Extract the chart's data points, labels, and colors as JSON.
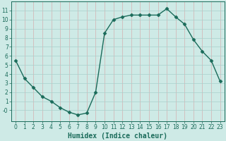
{
  "x": [
    0,
    1,
    2,
    3,
    4,
    5,
    6,
    7,
    8,
    9,
    10,
    11,
    12,
    13,
    14,
    15,
    16,
    17,
    18,
    19,
    20,
    21,
    22,
    23
  ],
  "y": [
    5.5,
    3.5,
    2.5,
    1.5,
    1.0,
    0.3,
    -0.2,
    -0.5,
    -0.3,
    2.0,
    8.5,
    10.0,
    10.3,
    10.5,
    10.5,
    10.5,
    10.5,
    11.2,
    10.3,
    9.5,
    7.8,
    6.5,
    5.5,
    3.2
  ],
  "line_color": "#1a6b5a",
  "marker": "D",
  "markersize": 2.5,
  "linewidth": 1.0,
  "bg_color": "#ceeae6",
  "hgrid_color": "#a8d0cc",
  "vgrid_color": "#d4b0b0",
  "xlabel": "Humidex (Indice chaleur)",
  "xlim": [
    -0.5,
    23.5
  ],
  "ylim": [
    -1.2,
    12.0
  ],
  "yticks": [
    0,
    1,
    2,
    3,
    4,
    5,
    6,
    7,
    8,
    9,
    10,
    11
  ],
  "xticks": [
    0,
    1,
    2,
    3,
    4,
    5,
    6,
    7,
    8,
    9,
    10,
    11,
    12,
    13,
    14,
    15,
    16,
    17,
    18,
    19,
    20,
    21,
    22,
    23
  ],
  "tick_fontsize": 5.5,
  "xlabel_fontsize": 7.0,
  "tick_color": "#1a6b5a",
  "label_color": "#1a6b5a",
  "spine_color": "#1a6b5a"
}
